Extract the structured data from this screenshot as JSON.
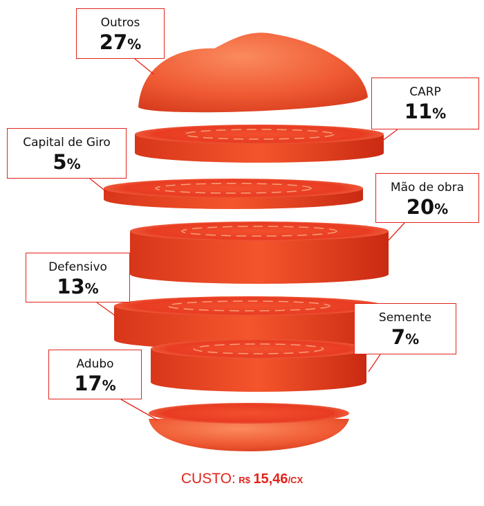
{
  "items": [
    {
      "label": "Outros",
      "value": 27,
      "unit": "%"
    },
    {
      "label": "CARP",
      "value": 11,
      "unit": "%"
    },
    {
      "label": "Capital de Giro",
      "value": 5,
      "unit": "%"
    },
    {
      "label": "Mão de obra",
      "value": 20,
      "unit": "%"
    },
    {
      "label": "Defensivo",
      "value": 13,
      "unit": "%"
    },
    {
      "label": "Semente",
      "value": 7,
      "unit": "%"
    },
    {
      "label": "Adubo",
      "value": 17,
      "unit": "%"
    }
  ],
  "footer": {
    "label": "CUSTO:",
    "currency": "R$",
    "amount": "15,46",
    "per": "/CX"
  }
}
